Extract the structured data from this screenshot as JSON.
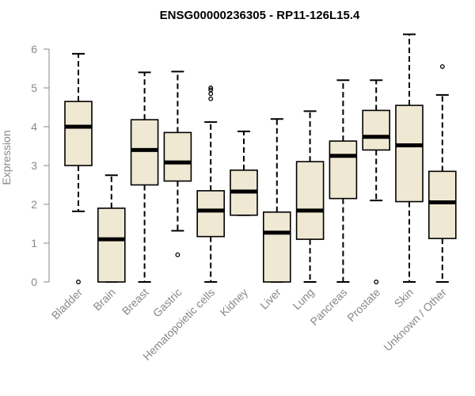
{
  "chart_data": {
    "type": "box",
    "title": "ENSG00000236305 - RP11-126L15.4",
    "xlabel": "",
    "ylabel": "Expression",
    "ylim": [
      0,
      6.4
    ],
    "yticks": [
      0,
      1,
      2,
      3,
      4,
      5,
      6
    ],
    "box_fill": "#efe8d2",
    "categories": [
      "Bladder",
      "Brain",
      "Breast",
      "Gastric",
      "Hematopoietic cells",
      "Kidney",
      "Liver",
      "Lung",
      "Pancreas",
      "Prostate",
      "Skin",
      "Unknown / Other"
    ],
    "boxes": [
      {
        "min": 1.82,
        "q1": 3.0,
        "median": 4.0,
        "q3": 4.65,
        "max": 5.88,
        "outliers": [
          0.0
        ]
      },
      {
        "min": 0.0,
        "q1": 0.0,
        "median": 1.1,
        "q3": 1.9,
        "max": 2.75,
        "outliers": []
      },
      {
        "min": 0.0,
        "q1": 2.5,
        "median": 3.4,
        "q3": 4.18,
        "max": 5.4,
        "outliers": []
      },
      {
        "min": 1.32,
        "q1": 2.6,
        "median": 3.08,
        "q3": 3.85,
        "max": 5.42,
        "outliers": [
          0.7
        ]
      },
      {
        "min": 0.0,
        "q1": 1.17,
        "median": 1.84,
        "q3": 2.35,
        "max": 4.12,
        "outliers": [
          4.72,
          4.85,
          4.95,
          5.0
        ]
      },
      {
        "min": 1.72,
        "q1": 1.72,
        "median": 2.33,
        "q3": 2.88,
        "max": 3.88,
        "outliers": []
      },
      {
        "min": 0.0,
        "q1": 0.0,
        "median": 1.27,
        "q3": 1.8,
        "max": 4.2,
        "outliers": []
      },
      {
        "min": 0.0,
        "q1": 1.1,
        "median": 1.84,
        "q3": 3.1,
        "max": 4.4,
        "outliers": []
      },
      {
        "min": 0.0,
        "q1": 2.15,
        "median": 3.25,
        "q3": 3.63,
        "max": 5.2,
        "outliers": []
      },
      {
        "min": 2.1,
        "q1": 3.4,
        "median": 3.74,
        "q3": 4.42,
        "max": 5.2,
        "outliers": [
          0.0
        ]
      },
      {
        "min": 0.0,
        "q1": 2.07,
        "median": 3.52,
        "q3": 4.55,
        "max": 6.38,
        "outliers": []
      },
      {
        "min": 0.0,
        "q1": 1.12,
        "median": 2.05,
        "q3": 2.85,
        "max": 4.82,
        "outliers": [
          5.55
        ]
      }
    ]
  }
}
